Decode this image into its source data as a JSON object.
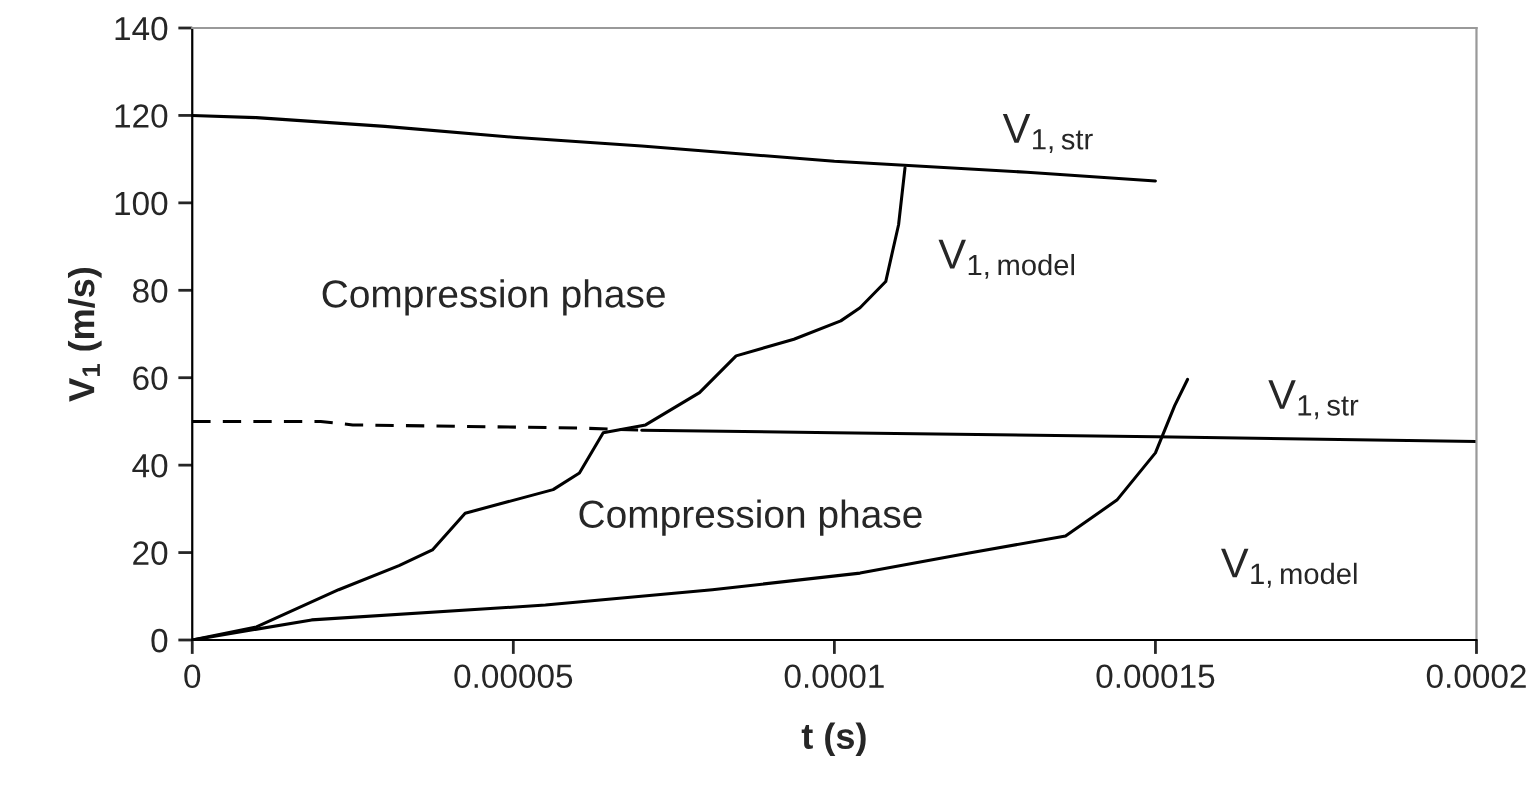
{
  "chart_data": {
    "type": "line",
    "xlabel": "t (s)",
    "ylabel": "V$_{1}$ (m/s)",
    "xlim": [
      0,
      0.0002
    ],
    "ylim": [
      0,
      140
    ],
    "xticks": [
      0,
      {
        "value": 5e-05,
        "label": "0.00005"
      },
      {
        "value": 0.0001,
        "label": "0.0001"
      },
      {
        "value": 0.00015,
        "label": "0.00015"
      },
      {
        "value": 0.0002,
        "label": "0.0002"
      }
    ],
    "yticks": [
      0,
      20,
      40,
      60,
      80,
      100,
      120,
      140
    ],
    "grid": false,
    "legend": false,
    "marker": "none",
    "series": [
      {
        "name": "V$_{1,str}$",
        "color": "#000000",
        "line_style": "solid",
        "x": [
          0,
          1e-05,
          3e-05,
          5e-05,
          7e-05,
          0.0001,
          0.00013,
          0.00015
        ],
        "values": [
          120,
          119.5,
          117.5,
          115,
          113,
          109.5,
          107,
          105
        ]
      },
      {
        "color": "#000000",
        "line_style": "dashed",
        "x": [
          0,
          2e-05,
          2.5e-05,
          6e-05,
          7e-05
        ],
        "values": [
          50,
          50,
          49.2,
          48.5,
          48
        ]
      },
      {
        "name": "V$_{1,str}$",
        "color": "#000000",
        "line_style": "solid",
        "x": [
          7e-05,
          0.0001,
          0.00015,
          0.0002
        ],
        "values": [
          48,
          47.4,
          46.5,
          45.4
        ]
      },
      {
        "name": "V$_{1,model}$",
        "color": "#000000",
        "line_style": "solid",
        "x": [
          0,
          1e-05,
          2.28e-05,
          3.22e-05,
          3.74e-05,
          4.25e-05,
          5.62e-05,
          6.03e-05,
          6.4e-05,
          7.06e-05,
          7.9e-05,
          8.47e-05,
          9.37e-05,
          0.000101,
          0.000104,
          0.000108,
          0.00011,
          0.000111
        ],
        "values": [
          0,
          3,
          11.5,
          17,
          20.6,
          29,
          34.4,
          38.2,
          47.4,
          49.2,
          56.6,
          65,
          68.8,
          73,
          76,
          82,
          95,
          108
        ]
      },
      {
        "name": "V$_{1,model}$",
        "color": "#000000",
        "line_style": "solid",
        "x": [
          0,
          1.86e-05,
          5.5e-05,
          8.1e-05,
          0.000104,
          0.000121,
          0.000136,
          0.000144,
          0.00015,
          0.000153,
          0.000155
        ],
        "values": [
          0,
          4.6,
          8,
          11.5,
          15.3,
          19.9,
          23.8,
          32,
          42.8,
          53.6,
          59.6
        ]
      }
    ],
    "annotations": [
      "Compression phase",
      "Compression phase"
    ]
  }
}
